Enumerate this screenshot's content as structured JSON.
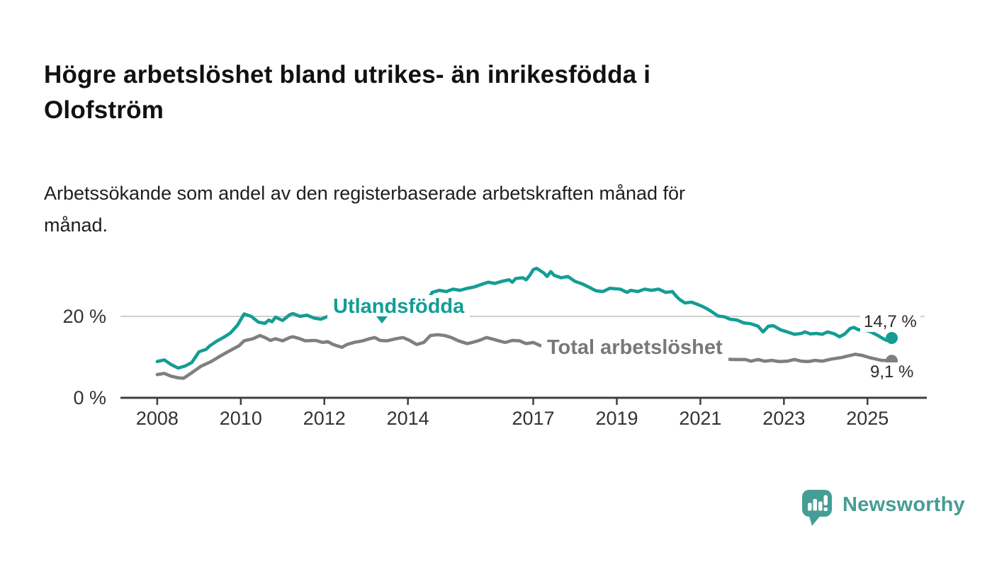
{
  "header": {
    "title": "Högre arbetslöshet bland utrikes- än inrikesfödda i\nOlofström",
    "subtitle": "Arbetssökande som andel av den registerbaserade arbetskraften månad för\nmånad."
  },
  "colors": {
    "teal_line": "#149d94",
    "gray_line": "#7f7f7f",
    "axis": "#3f3f3f",
    "grid": "#d0d0d0",
    "tick_text": "#333333",
    "logo_teal": "#469d95"
  },
  "chart_data": {
    "type": "line",
    "title": "Högre arbetslöshet bland utrikes- än inrikesfödda i Olofström",
    "subtitle": "Arbetssökande som andel av den registerbaserade arbetskraften månad för månad.",
    "xlabel": "",
    "ylabel": "",
    "grid": "horizontal, only at 20 %",
    "legend_position": "inline series labels",
    "x_range": [
      2007.12,
      2026.42
    ],
    "y_range": [
      0,
      34
    ],
    "x_ticks": [
      {
        "year": 2008,
        "label": "2008"
      },
      {
        "year": 2010,
        "label": "2010"
      },
      {
        "year": 2012,
        "label": "2012"
      },
      {
        "year": 2014,
        "label": "2014"
      },
      {
        "year": 2017,
        "label": "2017"
      },
      {
        "year": 2019,
        "label": "2019"
      },
      {
        "year": 2021,
        "label": "2021"
      },
      {
        "year": 2023,
        "label": "2023"
      },
      {
        "year": 2025,
        "label": "2025"
      }
    ],
    "y_ticks": [
      {
        "value": 0,
        "label": "0 %"
      },
      {
        "value": 20,
        "label": "20 %"
      }
    ],
    "annotation": {
      "series": "Utlandsfödda",
      "symbol": "▼",
      "x": 2013.4,
      "points_at_value": 18.7
    },
    "series": [
      {
        "name": "Utlandsfödda",
        "color": "#149d94",
        "end_label": "14,7 %",
        "end_value": 14.7,
        "points": [
          [
            2008.0,
            8.9
          ],
          [
            2008.17,
            9.3
          ],
          [
            2008.33,
            8.2
          ],
          [
            2008.5,
            7.3
          ],
          [
            2008.67,
            7.8
          ],
          [
            2008.83,
            8.7
          ],
          [
            2009.0,
            11.3
          ],
          [
            2009.17,
            11.9
          ],
          [
            2009.25,
            12.7
          ],
          [
            2009.42,
            13.9
          ],
          [
            2009.58,
            14.8
          ],
          [
            2009.75,
            15.9
          ],
          [
            2009.92,
            17.8
          ],
          [
            2010.08,
            20.6
          ],
          [
            2010.25,
            20.0
          ],
          [
            2010.42,
            18.6
          ],
          [
            2010.58,
            18.3
          ],
          [
            2010.67,
            19.1
          ],
          [
            2010.75,
            18.7
          ],
          [
            2010.83,
            19.8
          ],
          [
            2011.0,
            19.0
          ],
          [
            2011.17,
            20.4
          ],
          [
            2011.25,
            20.7
          ],
          [
            2011.42,
            20.0
          ],
          [
            2011.58,
            20.3
          ],
          [
            2011.75,
            19.6
          ],
          [
            2011.92,
            19.3
          ],
          [
            2012.08,
            20.0
          ],
          [
            2012.25,
            19.4
          ],
          [
            2012.42,
            18.2
          ],
          [
            2012.58,
            18.8
          ],
          [
            2012.75,
            19.2
          ],
          [
            2012.92,
            19.0
          ],
          [
            2013.08,
            19.4
          ],
          [
            2013.25,
            19.1
          ],
          [
            2013.42,
            18.7
          ],
          [
            2013.58,
            19.0
          ],
          [
            2013.75,
            19.2
          ],
          [
            2013.92,
            19.0
          ],
          [
            2014.08,
            19.3
          ],
          [
            2014.25,
            19.1
          ],
          [
            2014.42,
            20.5
          ],
          [
            2014.5,
            24.3
          ],
          [
            2014.58,
            25.9
          ],
          [
            2014.75,
            26.4
          ],
          [
            2014.92,
            26.1
          ],
          [
            2015.08,
            26.7
          ],
          [
            2015.25,
            26.4
          ],
          [
            2015.42,
            26.9
          ],
          [
            2015.58,
            27.2
          ],
          [
            2015.75,
            27.8
          ],
          [
            2015.92,
            28.4
          ],
          [
            2016.08,
            28.1
          ],
          [
            2016.25,
            28.6
          ],
          [
            2016.42,
            29.0
          ],
          [
            2016.5,
            28.4
          ],
          [
            2016.58,
            29.3
          ],
          [
            2016.75,
            29.5
          ],
          [
            2016.83,
            29.0
          ],
          [
            2016.92,
            30.1
          ],
          [
            2017.0,
            31.5
          ],
          [
            2017.08,
            31.8
          ],
          [
            2017.25,
            30.7
          ],
          [
            2017.33,
            29.8
          ],
          [
            2017.42,
            31.0
          ],
          [
            2017.5,
            30.1
          ],
          [
            2017.67,
            29.5
          ],
          [
            2017.83,
            29.8
          ],
          [
            2018.0,
            28.6
          ],
          [
            2018.17,
            28.0
          ],
          [
            2018.33,
            27.2
          ],
          [
            2018.5,
            26.3
          ],
          [
            2018.67,
            26.1
          ],
          [
            2018.83,
            26.9
          ],
          [
            2019.08,
            26.7
          ],
          [
            2019.25,
            25.9
          ],
          [
            2019.33,
            26.4
          ],
          [
            2019.5,
            26.1
          ],
          [
            2019.67,
            26.7
          ],
          [
            2019.83,
            26.4
          ],
          [
            2020.0,
            26.7
          ],
          [
            2020.17,
            25.9
          ],
          [
            2020.33,
            26.1
          ],
          [
            2020.42,
            25.0
          ],
          [
            2020.5,
            24.2
          ],
          [
            2020.63,
            23.3
          ],
          [
            2020.79,
            23.5
          ],
          [
            2020.92,
            23.0
          ],
          [
            2021.04,
            22.5
          ],
          [
            2021.17,
            21.8
          ],
          [
            2021.25,
            21.3
          ],
          [
            2021.42,
            20.1
          ],
          [
            2021.58,
            19.9
          ],
          [
            2021.71,
            19.3
          ],
          [
            2021.88,
            19.1
          ],
          [
            2022.04,
            18.4
          ],
          [
            2022.21,
            18.2
          ],
          [
            2022.38,
            17.6
          ],
          [
            2022.5,
            16.2
          ],
          [
            2022.63,
            17.6
          ],
          [
            2022.75,
            17.7
          ],
          [
            2022.92,
            16.7
          ],
          [
            2023.08,
            16.2
          ],
          [
            2023.25,
            15.6
          ],
          [
            2023.42,
            15.8
          ],
          [
            2023.5,
            16.2
          ],
          [
            2023.63,
            15.7
          ],
          [
            2023.79,
            15.8
          ],
          [
            2023.92,
            15.6
          ],
          [
            2024.04,
            16.2
          ],
          [
            2024.21,
            15.7
          ],
          [
            2024.33,
            15.0
          ],
          [
            2024.46,
            15.7
          ],
          [
            2024.58,
            17.0
          ],
          [
            2024.67,
            17.3
          ],
          [
            2024.79,
            16.7
          ],
          [
            2024.92,
            16.7
          ],
          [
            2025.08,
            16.2
          ],
          [
            2025.25,
            15.3
          ],
          [
            2025.38,
            14.5
          ],
          [
            2025.46,
            14.1
          ],
          [
            2025.58,
            14.7
          ]
        ]
      },
      {
        "name": "Total arbetslöshet",
        "color": "#7f7f7f",
        "end_label": "9,1 %",
        "end_value": 9.1,
        "points": [
          [
            2008.0,
            5.7
          ],
          [
            2008.17,
            6.0
          ],
          [
            2008.33,
            5.3
          ],
          [
            2008.5,
            4.9
          ],
          [
            2008.63,
            4.8
          ],
          [
            2008.79,
            5.9
          ],
          [
            2009.04,
            7.7
          ],
          [
            2009.29,
            8.9
          ],
          [
            2009.5,
            10.2
          ],
          [
            2009.71,
            11.4
          ],
          [
            2009.96,
            12.8
          ],
          [
            2010.08,
            14.0
          ],
          [
            2010.29,
            14.5
          ],
          [
            2010.46,
            15.3
          ],
          [
            2010.58,
            14.8
          ],
          [
            2010.71,
            14.1
          ],
          [
            2010.83,
            14.5
          ],
          [
            2011.0,
            14.0
          ],
          [
            2011.17,
            14.8
          ],
          [
            2011.25,
            15.0
          ],
          [
            2011.42,
            14.5
          ],
          [
            2011.54,
            14.0
          ],
          [
            2011.79,
            14.1
          ],
          [
            2011.96,
            13.6
          ],
          [
            2012.08,
            13.8
          ],
          [
            2012.21,
            13.1
          ],
          [
            2012.42,
            12.4
          ],
          [
            2012.54,
            13.1
          ],
          [
            2012.71,
            13.6
          ],
          [
            2012.92,
            14.0
          ],
          [
            2013.08,
            14.5
          ],
          [
            2013.21,
            14.8
          ],
          [
            2013.33,
            14.1
          ],
          [
            2013.5,
            14.0
          ],
          [
            2013.71,
            14.5
          ],
          [
            2013.88,
            14.8
          ],
          [
            2014.04,
            14.1
          ],
          [
            2014.21,
            13.1
          ],
          [
            2014.38,
            13.6
          ],
          [
            2014.54,
            15.3
          ],
          [
            2014.71,
            15.5
          ],
          [
            2014.88,
            15.3
          ],
          [
            2015.04,
            14.8
          ],
          [
            2015.21,
            14.0
          ],
          [
            2015.42,
            13.3
          ],
          [
            2015.54,
            13.6
          ],
          [
            2015.71,
            14.1
          ],
          [
            2015.88,
            14.8
          ],
          [
            2016.0,
            14.5
          ],
          [
            2016.17,
            14.0
          ],
          [
            2016.33,
            13.6
          ],
          [
            2016.5,
            14.1
          ],
          [
            2016.67,
            14.0
          ],
          [
            2016.83,
            13.3
          ],
          [
            2017.0,
            13.6
          ],
          [
            2017.17,
            12.8
          ],
          [
            2017.33,
            13.1
          ],
          [
            2017.58,
            12.6
          ],
          [
            2017.83,
            12.2
          ],
          [
            2018.08,
            11.8
          ],
          [
            2018.33,
            11.5
          ],
          [
            2018.58,
            11.2
          ],
          [
            2018.83,
            11.0
          ],
          [
            2019.08,
            10.8
          ],
          [
            2019.33,
            10.6
          ],
          [
            2019.58,
            10.4
          ],
          [
            2019.83,
            10.3
          ],
          [
            2020.08,
            10.4
          ],
          [
            2020.33,
            10.2
          ],
          [
            2020.58,
            10.0
          ],
          [
            2020.83,
            9.8
          ],
          [
            2021.08,
            9.7
          ],
          [
            2021.33,
            9.6
          ],
          [
            2021.58,
            9.5
          ],
          [
            2021.83,
            9.4
          ],
          [
            2022.08,
            9.4
          ],
          [
            2022.21,
            9.0
          ],
          [
            2022.38,
            9.4
          ],
          [
            2022.54,
            9.0
          ],
          [
            2022.71,
            9.2
          ],
          [
            2022.88,
            8.9
          ],
          [
            2023.08,
            9.0
          ],
          [
            2023.25,
            9.4
          ],
          [
            2023.42,
            9.0
          ],
          [
            2023.58,
            8.9
          ],
          [
            2023.75,
            9.2
          ],
          [
            2023.92,
            9.0
          ],
          [
            2024.13,
            9.5
          ],
          [
            2024.38,
            9.9
          ],
          [
            2024.58,
            10.4
          ],
          [
            2024.71,
            10.7
          ],
          [
            2024.88,
            10.4
          ],
          [
            2025.04,
            9.9
          ],
          [
            2025.21,
            9.5
          ],
          [
            2025.33,
            9.2
          ],
          [
            2025.58,
            9.1
          ]
        ]
      }
    ]
  },
  "branding": {
    "logo_text": "Newsworthy"
  }
}
